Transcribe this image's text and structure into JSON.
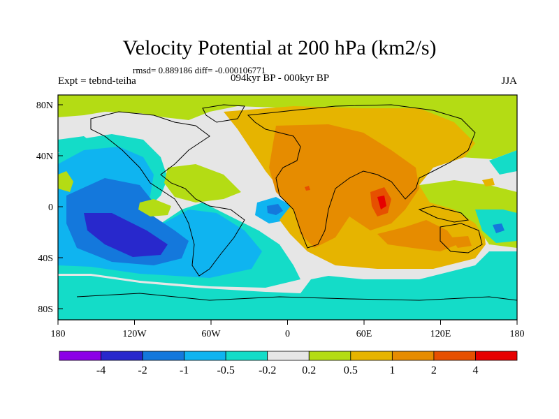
{
  "title": "Velocity Potential at 200 hPa (km2/s)",
  "stats_line": "rmsd= 0.889186 diff= -0.000106771",
  "left_label": "Expt = tebnd-teiha",
  "center_label": "094kyr BP - 000kyr BP",
  "right_label": "JJA",
  "lat_labels": [
    "80N",
    "40N",
    "0",
    "40S",
    "80S"
  ],
  "lon_labels": [
    "180",
    "120W",
    "60W",
    "0",
    "60E",
    "120E",
    "180"
  ],
  "colorbar": {
    "colors": [
      "#8c00e6",
      "#2828cc",
      "#1478dc",
      "#0fb4f0",
      "#14dcc8",
      "#e6e6e6",
      "#b4dc14",
      "#e6b400",
      "#e68c00",
      "#e65000",
      "#e60000"
    ],
    "labels": [
      "-4",
      "-2",
      "-1",
      "-0.5",
      "-0.2",
      "0.2",
      "0.5",
      "1",
      "2",
      "4"
    ]
  }
}
